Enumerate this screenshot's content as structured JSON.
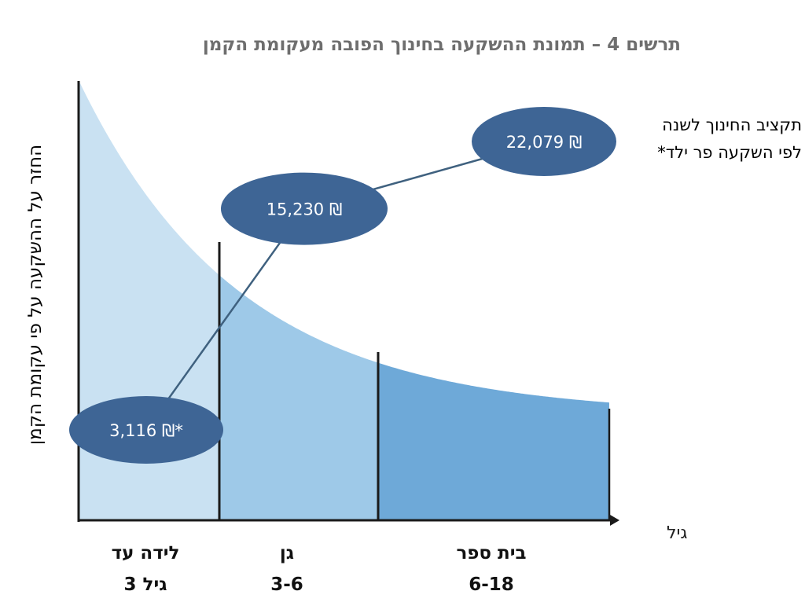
{
  "chart_data": {
    "type": "area",
    "title": "תרשים 4 – תמונת ההשקעה בחינוך הפובה מעקומת הקמן",
    "ylabel": "החזר על ההשקעה על פי עקומת הקמן",
    "xlabel": "גיל",
    "legend_lines": [
      "תקציב החינוך לשנה",
      "לפי השקעה פר ילד*"
    ],
    "age_groups": [
      {
        "line1": "לידה עד",
        "line2": "גיל 3",
        "color": "#c9e1f2"
      },
      {
        "line1": "גן",
        "line2": "3-6",
        "color": "#9ec9e8"
      },
      {
        "line1": "בית ספר",
        "line2": "6-18",
        "color": "#6ea9d8"
      }
    ],
    "budget_labels": [
      "3,116 ₪*",
      "15,230 ₪",
      "22,079 ₪"
    ],
    "budget_values": [
      3116,
      15230,
      22079
    ],
    "colors": {
      "ellipse": "#3e6595",
      "line": "#3f617f",
      "axis": "#1a1a1a",
      "title": "#6e6e6e"
    }
  }
}
